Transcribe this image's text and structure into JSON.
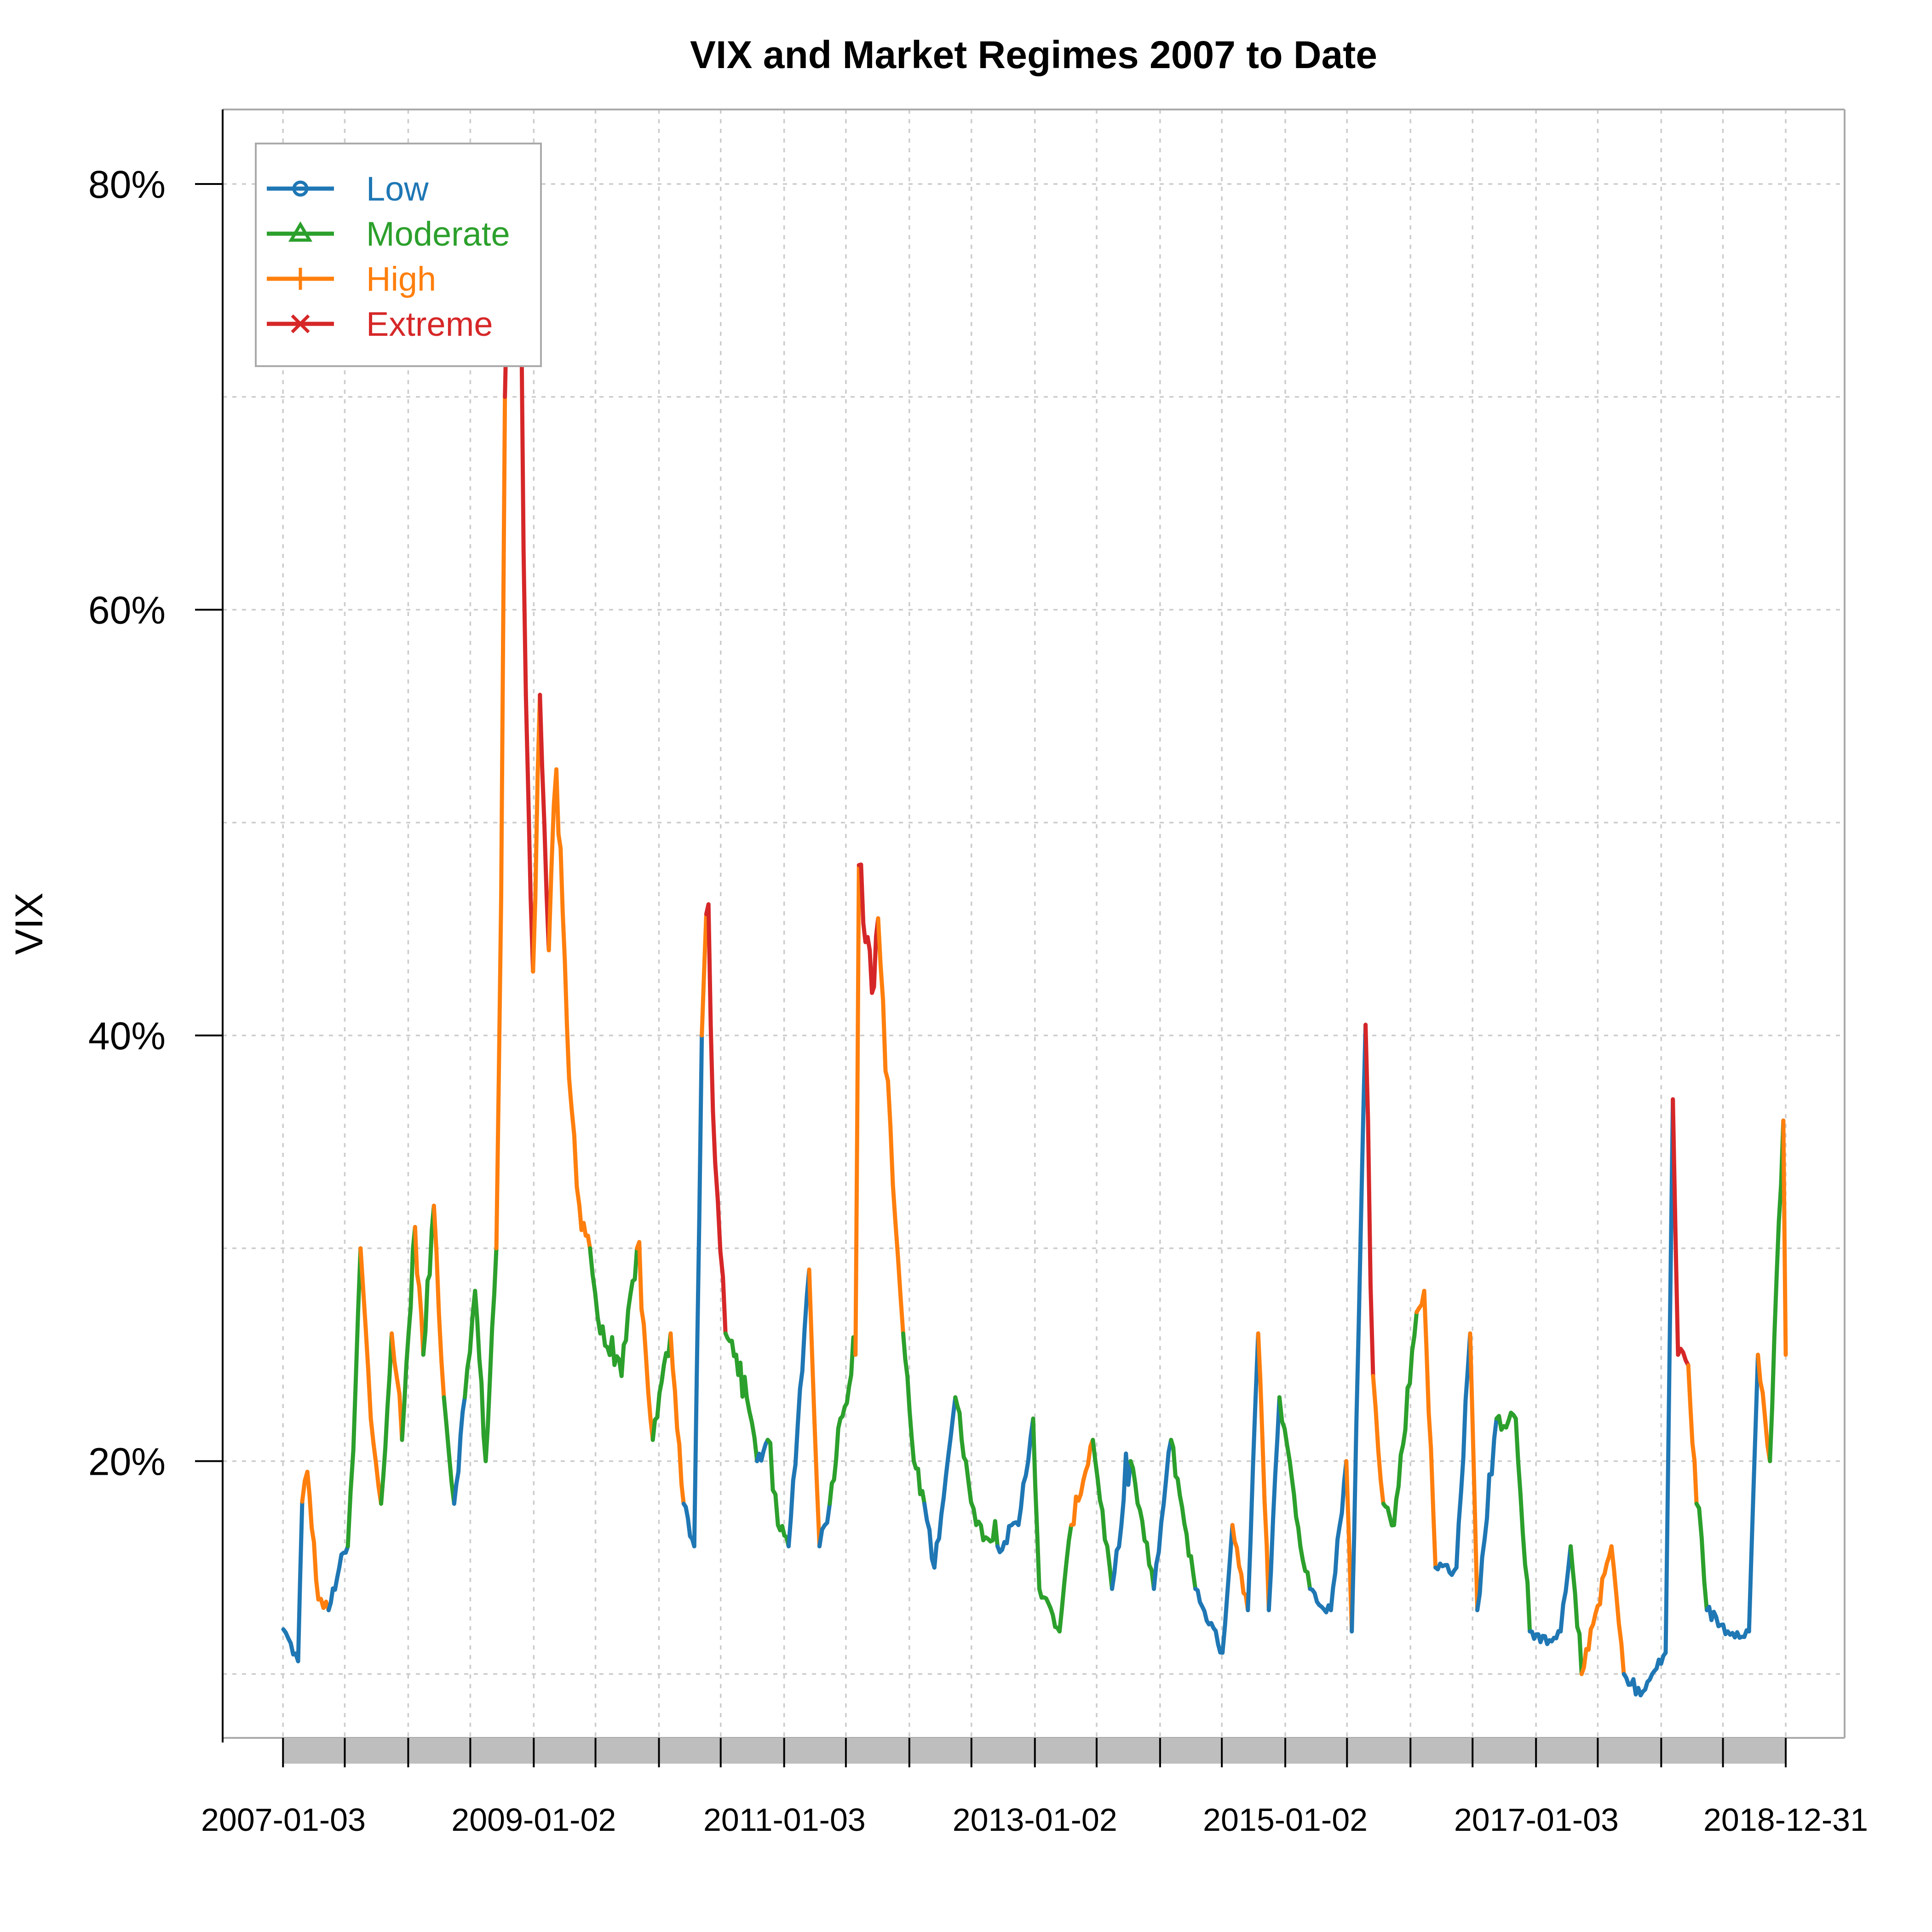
{
  "chart_data": {
    "type": "line",
    "title": "VIX and Market Regimes 2007 to Date",
    "xlabel": "",
    "ylabel": "VIX",
    "xlim": [
      "2007-01-03",
      "2018-12-31"
    ],
    "ylim": [
      0.07,
      0.835
    ],
    "y_scale": "percent",
    "yticks": [
      0.2,
      0.4,
      0.6,
      0.8
    ],
    "ytick_labels": [
      "20%",
      "40%",
      "60%",
      "80%"
    ],
    "xticks": [
      "2007-01-03",
      "2009-01-02",
      "2011-01-03",
      "2013-01-02",
      "2015-01-02",
      "2017-01-03",
      "2018-12-31"
    ],
    "xtick_labels": [
      "2007-01-03",
      "2009-01-02",
      "2011-01-03",
      "2013-01-02",
      "2015-01-02",
      "2017-01-03",
      "2018-12-31"
    ],
    "grid": true,
    "legend": {
      "position": "top-left",
      "entries": [
        {
          "name": "Low",
          "color": "#1f77b4",
          "marker": "circle"
        },
        {
          "name": "Moderate",
          "color": "#2ca02c",
          "marker": "triangle"
        },
        {
          "name": "High",
          "color": "#ff7f0e",
          "marker": "plus"
        },
        {
          "name": "Extreme",
          "color": "#d62728",
          "marker": "cross"
        }
      ]
    },
    "regime_colors": {
      "L": "#1f77b4",
      "M": "#2ca02c",
      "H": "#ff7f0e",
      "E": "#d62728"
    },
    "series": [
      {
        "name": "VIX",
        "points": [
          [
            "2007-01-03",
            0.121,
            "L"
          ],
          [
            "2007-02-15",
            0.106,
            "L"
          ],
          [
            "2007-02-27",
            0.181,
            "H"
          ],
          [
            "2007-03-14",
            0.195,
            "H"
          ],
          [
            "2007-04-15",
            0.135,
            "H"
          ],
          [
            "2007-05-15",
            0.13,
            "L"
          ],
          [
            "2007-06-15",
            0.15,
            "L"
          ],
          [
            "2007-07-10",
            0.16,
            "M"
          ],
          [
            "2007-07-26",
            0.205,
            "M"
          ],
          [
            "2007-08-16",
            0.3,
            "H"
          ],
          [
            "2007-09-15",
            0.22,
            "H"
          ],
          [
            "2007-10-15",
            0.18,
            "M"
          ],
          [
            "2007-11-15",
            0.26,
            "H"
          ],
          [
            "2007-12-15",
            0.21,
            "M"
          ],
          [
            "2008-01-22",
            0.31,
            "H"
          ],
          [
            "2008-02-15",
            0.25,
            "M"
          ],
          [
            "2008-03-17",
            0.32,
            "H"
          ],
          [
            "2008-04-15",
            0.23,
            "M"
          ],
          [
            "2008-05-15",
            0.18,
            "L"
          ],
          [
            "2008-06-15",
            0.23,
            "M"
          ],
          [
            "2008-07-15",
            0.28,
            "M"
          ],
          [
            "2008-08-15",
            0.2,
            "M"
          ],
          [
            "2008-09-15",
            0.3,
            "H"
          ],
          [
            "2008-09-29",
            0.465,
            "H"
          ],
          [
            "2008-10-10",
            0.7,
            "E"
          ],
          [
            "2008-10-24",
            0.79,
            "E"
          ],
          [
            "2008-11-20",
            0.81,
            "E"
          ],
          [
            "2008-12-10",
            0.56,
            "E"
          ],
          [
            "2008-12-31",
            0.43,
            "H"
          ],
          [
            "2009-01-20",
            0.56,
            "E"
          ],
          [
            "2009-02-15",
            0.44,
            "H"
          ],
          [
            "2009-03-09",
            0.525,
            "H"
          ],
          [
            "2009-04-15",
            0.38,
            "H"
          ],
          [
            "2009-05-15",
            0.32,
            "H"
          ],
          [
            "2009-06-15",
            0.3,
            "M"
          ],
          [
            "2009-07-15",
            0.26,
            "M"
          ],
          [
            "2009-09-15",
            0.24,
            "M"
          ],
          [
            "2009-10-30",
            0.3,
            "H"
          ],
          [
            "2009-12-15",
            0.21,
            "M"
          ],
          [
            "2010-02-05",
            0.26,
            "H"
          ],
          [
            "2010-03-15",
            0.18,
            "L"
          ],
          [
            "2010-04-15",
            0.16,
            "L"
          ],
          [
            "2010-05-07",
            0.4,
            "H"
          ],
          [
            "2010-05-20",
            0.457,
            "E"
          ],
          [
            "2010-06-15",
            0.34,
            "E"
          ],
          [
            "2010-07-15",
            0.26,
            "M"
          ],
          [
            "2010-08-15",
            0.25,
            "M"
          ],
          [
            "2010-09-15",
            0.23,
            "M"
          ],
          [
            "2010-10-15",
            0.2,
            "L"
          ],
          [
            "2010-11-15",
            0.21,
            "M"
          ],
          [
            "2010-12-15",
            0.17,
            "M"
          ],
          [
            "2011-01-15",
            0.16,
            "L"
          ],
          [
            "2011-03-16",
            0.29,
            "H"
          ],
          [
            "2011-04-15",
            0.16,
            "L"
          ],
          [
            "2011-05-15",
            0.18,
            "M"
          ],
          [
            "2011-06-15",
            0.22,
            "M"
          ],
          [
            "2011-07-29",
            0.25,
            "H"
          ],
          [
            "2011-08-08",
            0.48,
            "E"
          ],
          [
            "2011-09-15",
            0.42,
            "E"
          ],
          [
            "2011-10-03",
            0.455,
            "H"
          ],
          [
            "2011-11-15",
            0.33,
            "H"
          ],
          [
            "2011-12-15",
            0.26,
            "M"
          ],
          [
            "2012-01-15",
            0.2,
            "M"
          ],
          [
            "2012-02-15",
            0.18,
            "L"
          ],
          [
            "2012-03-15",
            0.15,
            "L"
          ],
          [
            "2012-05-15",
            0.23,
            "M"
          ],
          [
            "2012-06-15",
            0.2,
            "M"
          ],
          [
            "2012-07-15",
            0.17,
            "M"
          ],
          [
            "2012-09-15",
            0.16,
            "L"
          ],
          [
            "2012-11-15",
            0.17,
            "L"
          ],
          [
            "2012-12-28",
            0.22,
            "M"
          ],
          [
            "2013-01-15",
            0.14,
            "M"
          ],
          [
            "2013-03-15",
            0.12,
            "M"
          ],
          [
            "2013-04-18",
            0.17,
            "H"
          ],
          [
            "2013-06-20",
            0.21,
            "M"
          ],
          [
            "2013-08-15",
            0.14,
            "L"
          ],
          [
            "2013-10-08",
            0.2,
            "M"
          ],
          [
            "2013-12-15",
            0.14,
            "L"
          ],
          [
            "2014-02-03",
            0.21,
            "M"
          ],
          [
            "2014-04-15",
            0.14,
            "L"
          ],
          [
            "2014-07-03",
            0.11,
            "L"
          ],
          [
            "2014-08-01",
            0.17,
            "H"
          ],
          [
            "2014-09-15",
            0.13,
            "L"
          ],
          [
            "2014-10-15",
            0.26,
            "H"
          ],
          [
            "2014-11-15",
            0.13,
            "L"
          ],
          [
            "2014-12-16",
            0.23,
            "M"
          ],
          [
            "2015-01-15",
            0.2,
            "M"
          ],
          [
            "2015-02-15",
            0.16,
            "M"
          ],
          [
            "2015-03-15",
            0.14,
            "L"
          ],
          [
            "2015-05-15",
            0.13,
            "L"
          ],
          [
            "2015-06-29",
            0.2,
            "H"
          ],
          [
            "2015-07-15",
            0.12,
            "L"
          ],
          [
            "2015-08-24",
            0.405,
            "E"
          ],
          [
            "2015-09-15",
            0.24,
            "H"
          ],
          [
            "2015-10-15",
            0.18,
            "M"
          ],
          [
            "2015-11-15",
            0.17,
            "M"
          ],
          [
            "2016-01-20",
            0.27,
            "H"
          ],
          [
            "2016-02-11",
            0.28,
            "H"
          ],
          [
            "2016-03-15",
            0.15,
            "L"
          ],
          [
            "2016-05-15",
            0.15,
            "L"
          ],
          [
            "2016-06-24",
            0.26,
            "H"
          ],
          [
            "2016-07-15",
            0.13,
            "L"
          ],
          [
            "2016-09-09",
            0.22,
            "M"
          ],
          [
            "2016-11-04",
            0.22,
            "M"
          ],
          [
            "2016-12-15",
            0.12,
            "L"
          ],
          [
            "2017-01-15",
            0.115,
            "L"
          ],
          [
            "2017-03-15",
            0.12,
            "L"
          ],
          [
            "2017-04-13",
            0.16,
            "M"
          ],
          [
            "2017-05-15",
            0.1,
            "H"
          ],
          [
            "2017-08-10",
            0.16,
            "H"
          ],
          [
            "2017-09-15",
            0.1,
            "L"
          ],
          [
            "2017-11-03",
            0.09,
            "L"
          ],
          [
            "2018-01-15",
            0.11,
            "L"
          ],
          [
            "2018-02-05",
            0.37,
            "E"
          ],
          [
            "2018-02-20",
            0.25,
            "E"
          ],
          [
            "2018-03-22",
            0.245,
            "H"
          ],
          [
            "2018-04-15",
            0.18,
            "M"
          ],
          [
            "2018-05-15",
            0.13,
            "L"
          ],
          [
            "2018-07-15",
            0.12,
            "L"
          ],
          [
            "2018-09-15",
            0.12,
            "L"
          ],
          [
            "2018-10-11",
            0.25,
            "H"
          ],
          [
            "2018-11-15",
            0.2,
            "M"
          ],
          [
            "2018-12-24",
            0.36,
            "H"
          ],
          [
            "2018-12-31",
            0.25,
            "H"
          ]
        ]
      }
    ]
  }
}
